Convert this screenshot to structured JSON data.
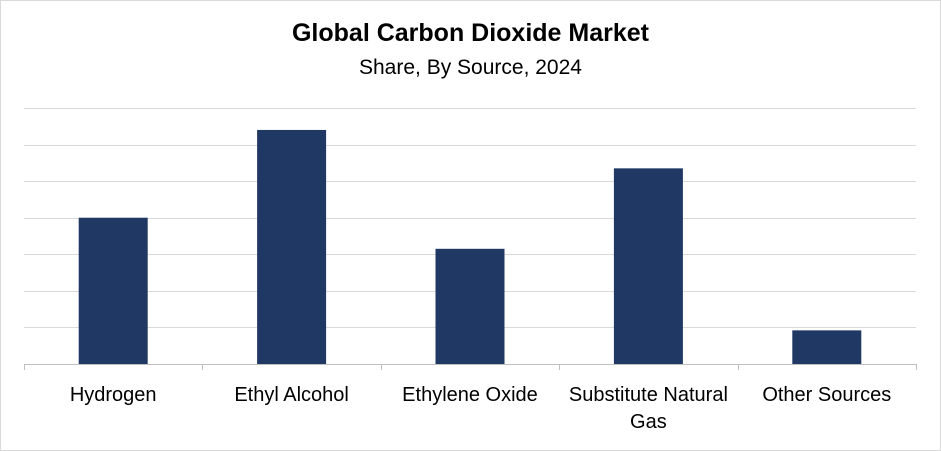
{
  "chart_data": {
    "type": "bar",
    "title": "Global Carbon Dioxide Market",
    "subtitle": "Share, By Source, 2024",
    "categories": [
      "Hydrogen",
      "Ethyl Alcohol",
      "Ethylene Oxide",
      "Substitute Natural Gas",
      "Other Sources"
    ],
    "category_lines": [
      [
        "Hydrogen"
      ],
      [
        "Ethyl Alcohol"
      ],
      [
        "Ethylene Oxide"
      ],
      [
        "Substitute Natural",
        "Gas"
      ],
      [
        "Other Sources"
      ]
    ],
    "values": [
      4.0,
      6.4,
      3.15,
      5.35,
      0.92
    ],
    "ylim": [
      0,
      7
    ],
    "grid": true,
    "bar_color": "#203864",
    "grid_color": "#d9d9d9",
    "axis_color": "#bfbfbf"
  }
}
